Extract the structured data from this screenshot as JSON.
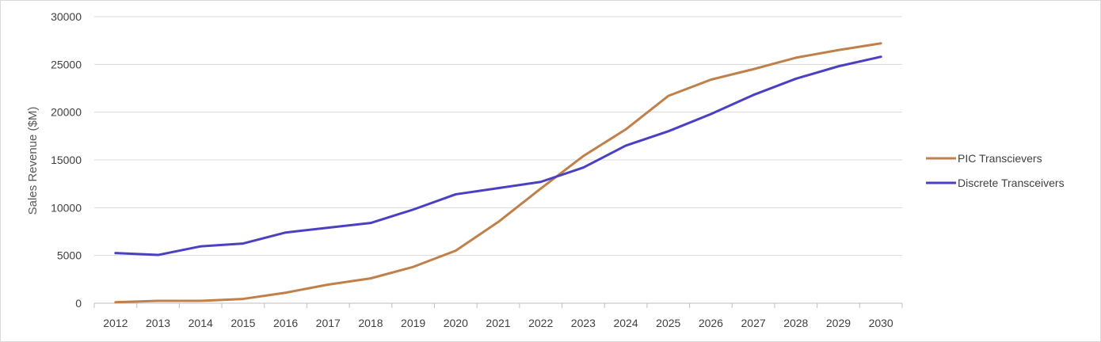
{
  "chart_data": {
    "type": "line",
    "title": "",
    "xlabel": "",
    "ylabel": "Sales Revenue ($M)",
    "ylim": [
      0,
      30000
    ],
    "yticks": [
      0,
      5000,
      10000,
      15000,
      20000,
      25000,
      30000
    ],
    "grid": true,
    "legend_position": "right",
    "categories": [
      "2012",
      "2013",
      "2014",
      "2015",
      "2016",
      "2017",
      "2018",
      "2019",
      "2020",
      "2021",
      "2022",
      "2023",
      "2024",
      "2025",
      "2026",
      "2027",
      "2028",
      "2029",
      "2030"
    ],
    "series": [
      {
        "name": "PIC Transcievers",
        "color": "#c0804a",
        "values": [
          100,
          250,
          250,
          450,
          1100,
          1950,
          2600,
          3800,
          5500,
          8500,
          12000,
          15400,
          18200,
          21700,
          23400,
          24500,
          25700,
          26500,
          27200
        ]
      },
      {
        "name": "Discrete Transceivers",
        "color": "#4b3fc4",
        "values": [
          5250,
          5050,
          5950,
          6250,
          7400,
          7900,
          8400,
          9800,
          11400,
          12050,
          12700,
          14200,
          16500,
          18000,
          19800,
          21800,
          23500,
          24800,
          25800
        ]
      }
    ]
  }
}
